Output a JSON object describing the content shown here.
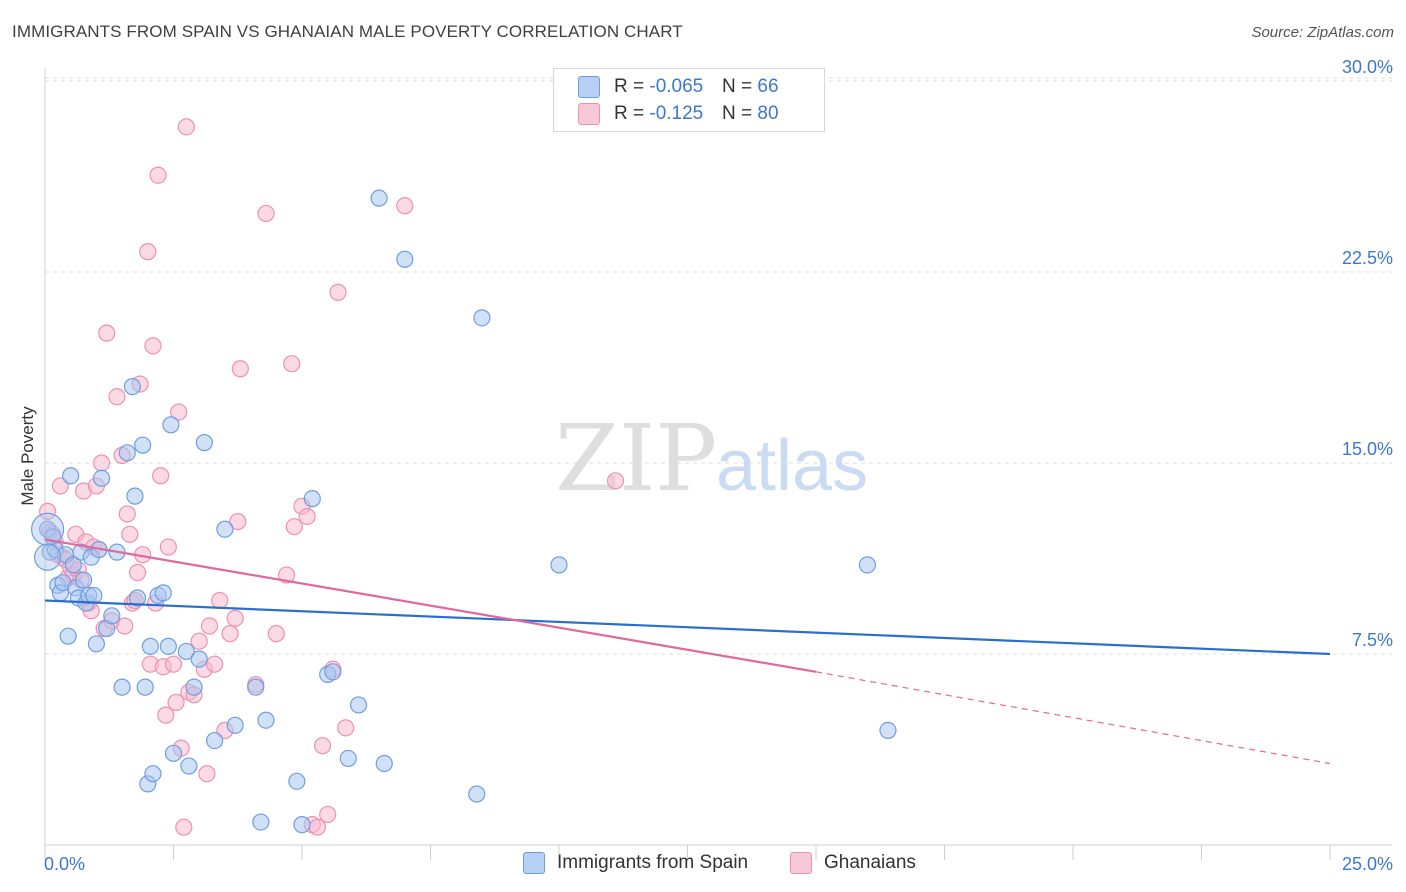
{
  "title": "IMMIGRANTS FROM SPAIN VS GHANAIAN MALE POVERTY CORRELATION CHART",
  "source": "Source: ZipAtlas.com",
  "watermark": {
    "zip": "ZIP",
    "atlas": "atlas"
  },
  "legend_top": [
    {
      "r_label": "R = ",
      "r_value": "-0.065",
      "n_label": "N = ",
      "n_value": "66"
    },
    {
      "r_label": "R = ",
      "r_value": "-0.125",
      "n_label": "N = ",
      "n_value": "80"
    }
  ],
  "legend_bottom": [
    "Immigrants from Spain",
    "Ghanaians"
  ],
  "colors": {
    "spain_fill": "#a9c6f0",
    "spain_stroke": "#6f9ee0",
    "spain_line": "#2a6fcc",
    "ghana_fill": "#f7bcd0",
    "ghana_stroke": "#ee90b0",
    "ghana_line": "#e0689a",
    "tick_text": "#3b78d0",
    "grid": "#dcdcdc"
  },
  "chart_data": {
    "type": "scatter",
    "title": "IMMIGRANTS FROM SPAIN VS GHANAIAN MALE POVERTY CORRELATION CHART",
    "xlabel": "",
    "ylabel": "Male Poverty",
    "xlim": [
      0,
      25
    ],
    "ylim": [
      0,
      32
    ],
    "x_tick_labels": [
      "0.0%",
      "25.0%"
    ],
    "y_ticks": [
      7.5,
      15.0,
      22.5,
      30.0
    ],
    "y_tick_labels": [
      "7.5%",
      "15.0%",
      "22.5%",
      "30.0%"
    ],
    "grid": true,
    "legend_position": "top-center",
    "series": [
      {
        "name": "Immigrants from Spain",
        "stats": {
          "R": -0.065,
          "N": 66
        },
        "trend": {
          "x": [
            0,
            25
          ],
          "y": [
            9.6,
            7.5
          ]
        },
        "points": [
          [
            0.05,
            12.4
          ],
          [
            0.1,
            11.5
          ],
          [
            0.15,
            12.1
          ],
          [
            0.2,
            11.6
          ],
          [
            0.25,
            10.2
          ],
          [
            0.3,
            9.9
          ],
          [
            0.35,
            10.3
          ],
          [
            0.4,
            11.4
          ],
          [
            0.45,
            8.2
          ],
          [
            0.5,
            14.5
          ],
          [
            0.55,
            11.0
          ],
          [
            0.6,
            10.1
          ],
          [
            0.65,
            9.7
          ],
          [
            0.7,
            11.5
          ],
          [
            0.75,
            10.4
          ],
          [
            0.8,
            9.5
          ],
          [
            0.85,
            9.8
          ],
          [
            0.9,
            11.3
          ],
          [
            0.95,
            9.8
          ],
          [
            1.0,
            7.9
          ],
          [
            1.05,
            11.6
          ],
          [
            1.1,
            14.4
          ],
          [
            1.2,
            8.5
          ],
          [
            1.3,
            9.0
          ],
          [
            1.4,
            11.5
          ],
          [
            1.5,
            6.2
          ],
          [
            1.6,
            15.4
          ],
          [
            1.7,
            18.0
          ],
          [
            1.75,
            13.7
          ],
          [
            1.8,
            9.7
          ],
          [
            1.9,
            15.7
          ],
          [
            1.95,
            6.2
          ],
          [
            2.0,
            2.4
          ],
          [
            2.05,
            7.8
          ],
          [
            2.1,
            2.8
          ],
          [
            2.2,
            9.8
          ],
          [
            2.3,
            9.9
          ],
          [
            2.4,
            7.8
          ],
          [
            2.45,
            16.5
          ],
          [
            2.5,
            3.6
          ],
          [
            2.75,
            7.6
          ],
          [
            2.8,
            3.1
          ],
          [
            2.9,
            6.2
          ],
          [
            3.0,
            7.3
          ],
          [
            3.1,
            15.8
          ],
          [
            3.3,
            4.1
          ],
          [
            3.5,
            12.4
          ],
          [
            3.7,
            4.7
          ],
          [
            4.1,
            6.2
          ],
          [
            4.2,
            0.9
          ],
          [
            4.3,
            4.9
          ],
          [
            4.9,
            2.5
          ],
          [
            5.0,
            0.8
          ],
          [
            5.2,
            13.6
          ],
          [
            5.5,
            6.7
          ],
          [
            5.6,
            6.8
          ],
          [
            5.9,
            3.4
          ],
          [
            6.1,
            5.5
          ],
          [
            6.5,
            25.4
          ],
          [
            6.6,
            3.2
          ],
          [
            7.0,
            23.0
          ],
          [
            8.4,
            2.0
          ],
          [
            8.5,
            20.7
          ],
          [
            10.0,
            11.0
          ],
          [
            16.0,
            11.0
          ],
          [
            16.4,
            4.5
          ]
        ]
      },
      {
        "name": "Ghanaians",
        "stats": {
          "R": -0.125,
          "N": 80
        },
        "trend": {
          "x": [
            0,
            15,
            25
          ],
          "y": [
            12.0,
            6.8,
            3.2
          ],
          "solid_to_x": 15
        },
        "points": [
          [
            0.05,
            13.1
          ],
          [
            0.1,
            12.3
          ],
          [
            0.15,
            12.2
          ],
          [
            0.2,
            11.9
          ],
          [
            0.25,
            11.4
          ],
          [
            0.3,
            14.1
          ],
          [
            0.35,
            11.3
          ],
          [
            0.4,
            11.2
          ],
          [
            0.45,
            10.5
          ],
          [
            0.5,
            10.9
          ],
          [
            0.55,
            10.6
          ],
          [
            0.6,
            12.2
          ],
          [
            0.65,
            10.8
          ],
          [
            0.7,
            10.4
          ],
          [
            0.75,
            13.9
          ],
          [
            0.8,
            11.9
          ],
          [
            0.85,
            9.5
          ],
          [
            0.9,
            9.2
          ],
          [
            0.95,
            11.7
          ],
          [
            1.0,
            14.1
          ],
          [
            1.05,
            11.6
          ],
          [
            1.1,
            15.0
          ],
          [
            1.15,
            8.5
          ],
          [
            1.2,
            20.1
          ],
          [
            1.3,
            8.8
          ],
          [
            1.4,
            17.6
          ],
          [
            1.5,
            15.3
          ],
          [
            1.55,
            8.6
          ],
          [
            1.6,
            13.0
          ],
          [
            1.65,
            12.2
          ],
          [
            1.7,
            9.5
          ],
          [
            1.75,
            9.6
          ],
          [
            1.8,
            10.7
          ],
          [
            1.85,
            18.1
          ],
          [
            1.9,
            11.4
          ],
          [
            2.0,
            23.3
          ],
          [
            2.05,
            7.1
          ],
          [
            2.1,
            19.6
          ],
          [
            2.15,
            9.5
          ],
          [
            2.2,
            26.3
          ],
          [
            2.25,
            14.5
          ],
          [
            2.3,
            7.0
          ],
          [
            2.35,
            5.1
          ],
          [
            2.4,
            11.7
          ],
          [
            2.5,
            7.1
          ],
          [
            2.55,
            5.6
          ],
          [
            2.6,
            17.0
          ],
          [
            2.65,
            3.8
          ],
          [
            2.7,
            0.7
          ],
          [
            2.75,
            28.2
          ],
          [
            2.8,
            6.0
          ],
          [
            2.9,
            5.9
          ],
          [
            3.0,
            8.0
          ],
          [
            3.1,
            6.9
          ],
          [
            3.15,
            2.8
          ],
          [
            3.2,
            8.6
          ],
          [
            3.3,
            7.1
          ],
          [
            3.4,
            9.6
          ],
          [
            3.5,
            4.5
          ],
          [
            3.6,
            8.3
          ],
          [
            3.7,
            8.9
          ],
          [
            3.75,
            12.7
          ],
          [
            3.8,
            18.7
          ],
          [
            4.1,
            6.3
          ],
          [
            4.3,
            24.8
          ],
          [
            4.5,
            8.3
          ],
          [
            4.7,
            10.6
          ],
          [
            4.8,
            18.9
          ],
          [
            4.85,
            12.5
          ],
          [
            5.0,
            13.3
          ],
          [
            5.1,
            12.9
          ],
          [
            5.2,
            0.8
          ],
          [
            5.3,
            0.7
          ],
          [
            5.4,
            3.9
          ],
          [
            5.5,
            1.2
          ],
          [
            5.6,
            6.9
          ],
          [
            5.7,
            21.7
          ],
          [
            5.85,
            4.6
          ],
          [
            7.0,
            25.1
          ],
          [
            11.1,
            14.3
          ]
        ]
      }
    ]
  }
}
